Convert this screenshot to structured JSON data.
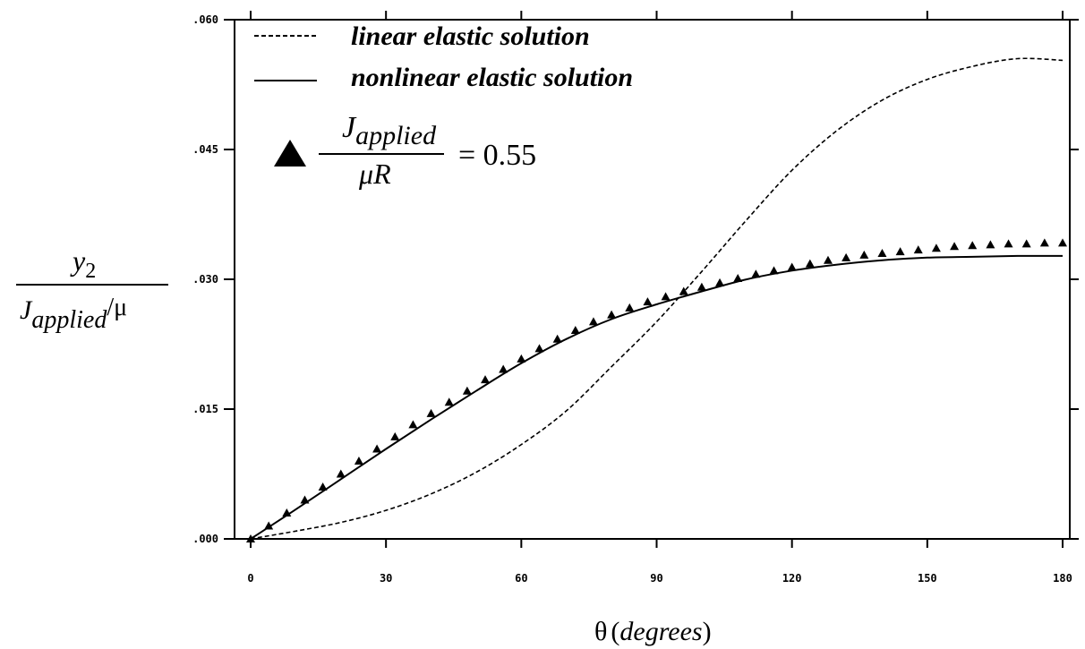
{
  "chart_data": {
    "type": "line",
    "title": "",
    "xlabel": {
      "symbol": "θ",
      "text": "degrees"
    },
    "ylabel": {
      "numerator": "y",
      "numerator_sub": "2",
      "denominator_main": "J",
      "denominator_sub": "applied",
      "denominator_tail": "/μ"
    },
    "xlim": [
      0,
      180
    ],
    "ylim": [
      0,
      0.06
    ],
    "x_ticks": [
      0,
      30,
      60,
      90,
      120,
      150,
      180
    ],
    "x_tick_labels": [
      "0",
      "30",
      "60",
      "90",
      "120",
      "150",
      "180"
    ],
    "y_ticks": [
      0,
      0.015,
      0.03,
      0.045,
      0.06
    ],
    "y_tick_labels": [
      ".000",
      ".015",
      ".030",
      ".045",
      ".060"
    ],
    "grid": false,
    "legend_position": "top-left",
    "series": [
      {
        "name": "linear elastic solution",
        "style": "dashed",
        "x": [
          0,
          10,
          20,
          30,
          40,
          50,
          60,
          70,
          80,
          90,
          100,
          110,
          120,
          130,
          140,
          150,
          160,
          170,
          180
        ],
        "y": [
          0.0,
          0.0009,
          0.0019,
          0.0033,
          0.0052,
          0.0077,
          0.0109,
          0.0148,
          0.0199,
          0.0251,
          0.0309,
          0.0369,
          0.0426,
          0.0472,
          0.0507,
          0.0531,
          0.0546,
          0.0555,
          0.0553
        ]
      },
      {
        "name": "nonlinear elastic solution",
        "style": "solid",
        "x": [
          0,
          10,
          20,
          30,
          40,
          50,
          60,
          70,
          80,
          90,
          100,
          110,
          120,
          130,
          140,
          150,
          160,
          170,
          180
        ],
        "y": [
          0.0,
          0.0034,
          0.0069,
          0.0104,
          0.0138,
          0.0171,
          0.0203,
          0.0231,
          0.0254,
          0.0271,
          0.0286,
          0.03,
          0.031,
          0.0317,
          0.0322,
          0.0325,
          0.0326,
          0.0327,
          0.0327
        ]
      },
      {
        "name": "",
        "style": "triangle-markers",
        "x": [
          0,
          4,
          8,
          12,
          16,
          20,
          24,
          28,
          32,
          36,
          40,
          44,
          48,
          52,
          56,
          60,
          64,
          68,
          72,
          76,
          80,
          84,
          88,
          92,
          96,
          100,
          104,
          108,
          112,
          116,
          120,
          124,
          128,
          132,
          136,
          140,
          144,
          148,
          152,
          156,
          160,
          164,
          168,
          172,
          176,
          180
        ],
        "y": [
          0.0,
          0.0015,
          0.003,
          0.0045,
          0.006,
          0.0075,
          0.009,
          0.0104,
          0.0118,
          0.0132,
          0.0145,
          0.0158,
          0.0171,
          0.0184,
          0.0196,
          0.0208,
          0.022,
          0.0231,
          0.0241,
          0.0251,
          0.0259,
          0.0267,
          0.0274,
          0.028,
          0.0286,
          0.0291,
          0.0296,
          0.0301,
          0.0306,
          0.031,
          0.0314,
          0.0318,
          0.0322,
          0.0325,
          0.0328,
          0.033,
          0.0332,
          0.0334,
          0.0336,
          0.0338,
          0.0339,
          0.034,
          0.0341,
          0.0341,
          0.0342,
          0.0342
        ]
      }
    ],
    "annotation": {
      "numerator_main": "J",
      "numerator_sub": "applied",
      "denominator": "μR",
      "value": "= 0.55"
    }
  }
}
